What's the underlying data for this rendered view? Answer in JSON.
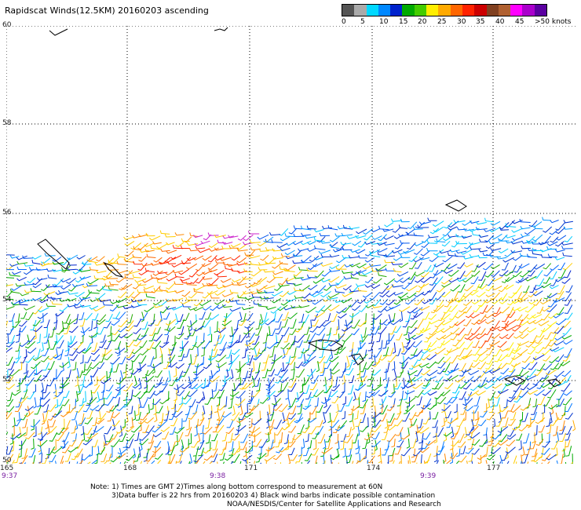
{
  "title": "Rapidscat Winds(12.5KM) 20160203 ascending",
  "legend": {
    "colors": [
      "#555555",
      "#aaaaaa",
      "#00d8ff",
      "#0088ff",
      "#0022cc",
      "#00aa00",
      "#44cc00",
      "#ffee00",
      "#ffaa00",
      "#ff6600",
      "#ff2200",
      "#cc0000",
      "#804020",
      "#b06030",
      "#ff00ff",
      "#aa00cc",
      "#5a00a0"
    ],
    "labels": [
      "0",
      "5",
      "10",
      "15",
      "20",
      "25",
      "30",
      "35",
      "40",
      "45",
      ">50 knots"
    ]
  },
  "lat_labels": [
    "60",
    "58",
    "56",
    "54",
    "52",
    "50"
  ],
  "lon_labels": [
    "165",
    "168",
    "171",
    "174",
    "177"
  ],
  "time_labels": [
    "9:37",
    "9:38",
    "9:39"
  ],
  "notes": [
    "Note: 1) Times are GMT 2)Times along bottom correspond to measurement at 60N",
    "3)Data buffer is 22 hrs from 20160203 4) Black wind barbs indicate possible contamination",
    "NOAA/NESDIS/Center for Satellite Applications and Research"
  ]
}
